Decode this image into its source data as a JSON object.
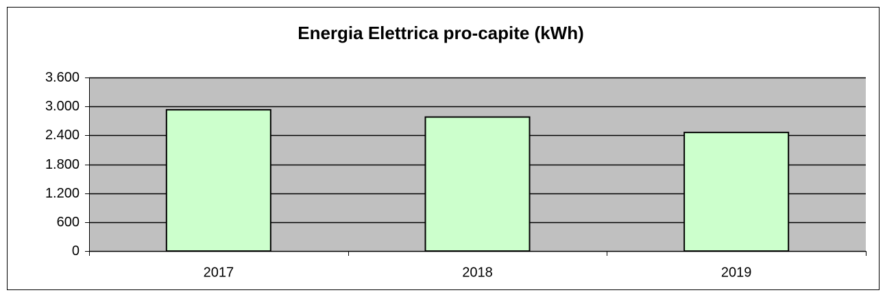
{
  "chart_data": {
    "type": "bar",
    "title": "Energia Elettrica pro-capite (kWh)",
    "categories": [
      "2017",
      "2018",
      "2019"
    ],
    "values": [
      2930,
      2780,
      2460
    ],
    "color": "#ccffcc",
    "ylim": [
      0,
      3600
    ],
    "yticks": [
      0,
      600,
      {
        "value": 1200,
        "label": "1.200"
      },
      {
        "value": 1800,
        "label": "1.800"
      },
      {
        "value": 2400,
        "label": "2.400"
      },
      {
        "value": 3000,
        "label": "3.000"
      },
      {
        "value": 3600,
        "label": "3.600"
      }
    ],
    "grid": true
  }
}
